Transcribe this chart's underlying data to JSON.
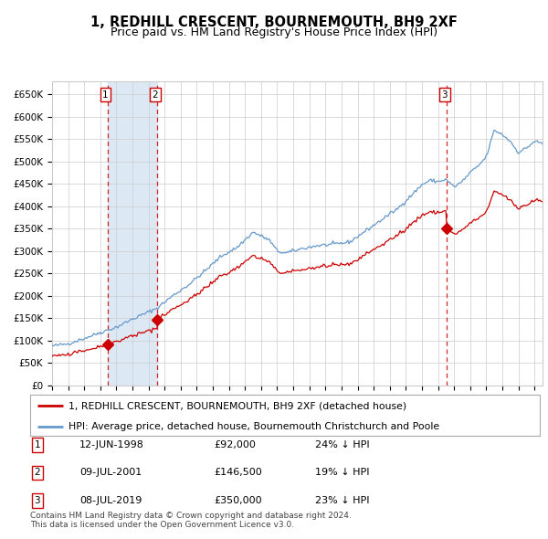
{
  "title": "1, REDHILL CRESCENT, BOURNEMOUTH, BH9 2XF",
  "subtitle": "Price paid vs. HM Land Registry's House Price Index (HPI)",
  "title_fontsize": 10.5,
  "subtitle_fontsize": 9,
  "ylabel_ticks": [
    "£0",
    "£50K",
    "£100K",
    "£150K",
    "£200K",
    "£250K",
    "£300K",
    "£350K",
    "£400K",
    "£450K",
    "£500K",
    "£550K",
    "£600K",
    "£650K"
  ],
  "ytick_values": [
    0,
    50000,
    100000,
    150000,
    200000,
    250000,
    300000,
    350000,
    400000,
    450000,
    500000,
    550000,
    600000,
    650000
  ],
  "ylim": [
    0,
    680000
  ],
  "xlim_start": 1995.0,
  "xlim_end": 2025.5,
  "sale1": {
    "date": 1998.44,
    "price": 92000,
    "label": "1"
  },
  "sale2": {
    "date": 2001.52,
    "price": 146500,
    "label": "2"
  },
  "sale3": {
    "date": 2019.52,
    "price": 350000,
    "label": "3"
  },
  "legend_red_label": "1, REDHILL CRESCENT, BOURNEMOUTH, BH9 2XF (detached house)",
  "legend_blue_label": "HPI: Average price, detached house, Bournemouth Christchurch and Poole",
  "table_rows": [
    {
      "num": "1",
      "date": "12-JUN-1998",
      "price": "£92,000",
      "pct": "24% ↓ HPI"
    },
    {
      "num": "2",
      "date": "09-JUL-2001",
      "price": "£146,500",
      "pct": "19% ↓ HPI"
    },
    {
      "num": "3",
      "date": "08-JUL-2019",
      "price": "£350,000",
      "pct": "23% ↓ HPI"
    }
  ],
  "footnote": "Contains HM Land Registry data © Crown copyright and database right 2024.\nThis data is licensed under the Open Government Licence v3.0.",
  "red_color": "#cc0000",
  "blue_color": "#6699cc",
  "bg_color": "#ffffff",
  "grid_color": "#cccccc",
  "shade_color": "#dde8f5"
}
